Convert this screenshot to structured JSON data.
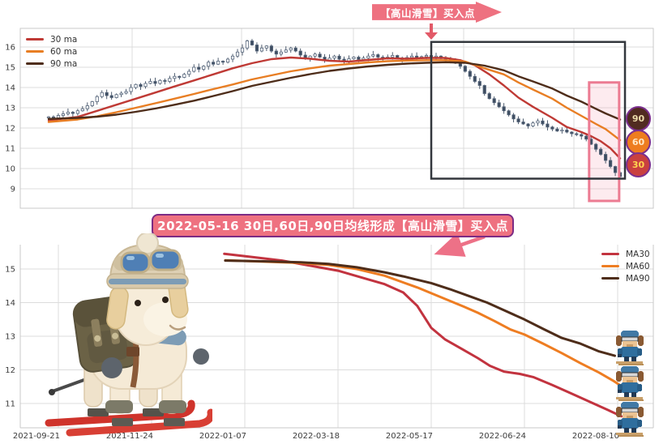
{
  "top_banner": {
    "label": "【高山滑雪】买入点"
  },
  "mid_banner": {
    "label": "2022-05-16 30日,60日,90日均线形成【高山滑雪】买入点"
  },
  "badges": [
    {
      "label": "90",
      "bg": "#512b20",
      "fg": "#ecdcab"
    },
    {
      "label": "60",
      "bg": "#ee7d1f",
      "fg": "#ffe9c7"
    },
    {
      "label": "30",
      "bg": "#c9403f",
      "fg": "#ffd54f"
    }
  ],
  "colors": {
    "banner_pink": "#ee7180",
    "banner_border_purple": "#7c2b84",
    "arrow_pink": "#ed7187",
    "highlight_box": "#33373d",
    "highlight_band_border": "#ec7b92",
    "highlight_band_fill": "rgba(244,166,184,0.22)",
    "candle_down": "#3d4c60",
    "candle_up_fill": "#ffffff",
    "grid": "#dcdcdc",
    "spine": "#c9c9c9",
    "tick_label": "#3c3c3c"
  },
  "chart_data": [
    {
      "type": "candlestick",
      "title": "",
      "xlabel": "",
      "ylabel": "",
      "ylim": [
        8.0,
        16.9
      ],
      "yticks": [
        9,
        10,
        11,
        12,
        13,
        14,
        15,
        16
      ],
      "xticklabels": [],
      "grid": true,
      "legend_position": "top-left",
      "candles_close": [
        12.55,
        12.5,
        12.62,
        12.7,
        12.78,
        12.72,
        12.85,
        12.95,
        13.1,
        13.3,
        13.55,
        13.75,
        13.6,
        13.5,
        13.65,
        13.72,
        13.8,
        14.0,
        14.15,
        14.05,
        14.2,
        14.3,
        14.2,
        14.35,
        14.3,
        14.45,
        14.55,
        14.5,
        14.65,
        14.8,
        15.0,
        14.9,
        15.05,
        15.25,
        15.15,
        15.3,
        15.25,
        15.4,
        15.55,
        15.75,
        15.95,
        16.3,
        16.1,
        15.8,
        15.95,
        16.05,
        15.8,
        15.65,
        15.75,
        15.85,
        15.95,
        15.8,
        15.6,
        15.45,
        15.55,
        15.65,
        15.5,
        15.35,
        15.45,
        15.55,
        15.4,
        15.3,
        15.42,
        15.5,
        15.38,
        15.45,
        15.55,
        15.62,
        15.5,
        15.42,
        15.5,
        15.58,
        15.45,
        15.38,
        15.48,
        15.55,
        15.45,
        15.52,
        15.58,
        15.5,
        15.55,
        15.48,
        15.4,
        15.3,
        15.2,
        15.05,
        14.8,
        14.55,
        14.3,
        14.1,
        13.7,
        13.45,
        13.25,
        13.05,
        12.85,
        12.65,
        12.45,
        12.3,
        12.2,
        12.1,
        12.25,
        12.35,
        12.2,
        12.05,
        11.95,
        11.85,
        11.9,
        11.8,
        11.72,
        11.68,
        11.6,
        11.45,
        11.2,
        10.95,
        10.7,
        10.4,
        10.1,
        9.8,
        9.6
      ],
      "series": [
        {
          "name": "30 ma",
          "color": "#bf3a35",
          "points": [
            [
              0,
              12.38
            ],
            [
              6,
              12.55
            ],
            [
              10,
              12.85
            ],
            [
              14,
              13.15
            ],
            [
              18,
              13.45
            ],
            [
              22,
              13.75
            ],
            [
              26,
              14.05
            ],
            [
              30,
              14.35
            ],
            [
              34,
              14.65
            ],
            [
              38,
              14.95
            ],
            [
              42,
              15.2
            ],
            [
              46,
              15.4
            ],
            [
              50,
              15.48
            ],
            [
              54,
              15.42
            ],
            [
              58,
              15.32
            ],
            [
              62,
              15.28
            ],
            [
              66,
              15.36
            ],
            [
              70,
              15.44
            ],
            [
              74,
              15.42
            ],
            [
              78,
              15.46
            ],
            [
              82,
              15.46
            ],
            [
              85,
              15.35
            ],
            [
              88,
              15.1
            ],
            [
              91,
              14.65
            ],
            [
              94,
              14.1
            ],
            [
              97,
              13.5
            ],
            [
              100,
              13.05
            ],
            [
              104,
              12.5
            ],
            [
              107,
              12.05
            ],
            [
              110,
              11.8
            ],
            [
              112,
              11.6
            ],
            [
              114,
              11.35
            ],
            [
              116,
              11.0
            ],
            [
              118,
              10.5
            ]
          ]
        },
        {
          "name": "60 ma",
          "color": "#e87e24",
          "points": [
            [
              0,
              12.3
            ],
            [
              6,
              12.42
            ],
            [
              10,
              12.58
            ],
            [
              14,
              12.78
            ],
            [
              18,
              13.0
            ],
            [
              22,
              13.22
            ],
            [
              26,
              13.45
            ],
            [
              30,
              13.68
            ],
            [
              34,
              13.92
            ],
            [
              38,
              14.15
            ],
            [
              42,
              14.4
            ],
            [
              46,
              14.6
            ],
            [
              50,
              14.8
            ],
            [
              54,
              14.95
            ],
            [
              58,
              15.08
            ],
            [
              62,
              15.16
            ],
            [
              66,
              15.24
            ],
            [
              70,
              15.3
            ],
            [
              74,
              15.33
            ],
            [
              78,
              15.35
            ],
            [
              82,
              15.35
            ],
            [
              86,
              15.28
            ],
            [
              90,
              14.95
            ],
            [
              94,
              14.65
            ],
            [
              97,
              14.25
            ],
            [
              100,
              13.9
            ],
            [
              104,
              13.45
            ],
            [
              107,
              13.0
            ],
            [
              110,
              12.6
            ],
            [
              113,
              12.2
            ],
            [
              115,
              11.95
            ],
            [
              118,
              11.4
            ]
          ]
        },
        {
          "name": "90 ma",
          "color": "#4e2d1a",
          "points": [
            [
              0,
              12.45
            ],
            [
              6,
              12.5
            ],
            [
              10,
              12.56
            ],
            [
              14,
              12.66
            ],
            [
              18,
              12.8
            ],
            [
              22,
              12.96
            ],
            [
              26,
              13.15
            ],
            [
              30,
              13.35
            ],
            [
              34,
              13.58
            ],
            [
              38,
              13.82
            ],
            [
              42,
              14.08
            ],
            [
              46,
              14.28
            ],
            [
              50,
              14.48
            ],
            [
              54,
              14.66
            ],
            [
              58,
              14.82
            ],
            [
              62,
              14.94
            ],
            [
              66,
              15.04
            ],
            [
              70,
              15.12
            ],
            [
              74,
              15.18
            ],
            [
              78,
              15.22
            ],
            [
              82,
              15.25
            ],
            [
              86,
              15.22
            ],
            [
              90,
              15.08
            ],
            [
              94,
              14.85
            ],
            [
              97,
              14.55
            ],
            [
              100,
              14.3
            ],
            [
              104,
              13.95
            ],
            [
              107,
              13.6
            ],
            [
              110,
              13.3
            ],
            [
              113,
              12.95
            ],
            [
              115,
              12.72
            ],
            [
              118,
              12.42
            ]
          ]
        }
      ],
      "annotations": {
        "highlight_box": {
          "x0_index": 79,
          "x1_index": 119,
          "y0": 9.5,
          "y1": 16.25
        },
        "highlight_band": {
          "x0_index": 111.6,
          "x1_index": 117.8,
          "y0": 8.4,
          "y1": 14.25
        },
        "badge_values": [
          12.4,
          11.4,
          10.5
        ]
      }
    },
    {
      "type": "line",
      "title": "",
      "xlabel": "",
      "ylabel": "",
      "ylim": [
        10.3,
        15.72
      ],
      "yticks": [
        11,
        12,
        13,
        14,
        15
      ],
      "xticklabels": [
        "2021-09-21",
        "2021-11-24",
        "2022-01-07",
        "2022-03-18",
        "2022-05-17",
        "2022-06-24",
        "2022-08-10"
      ],
      "grid": true,
      "legend_position": "top-right",
      "series": [
        {
          "name": "MA30",
          "color": "#c2333f",
          "points": [
            [
              1.78,
              15.45
            ],
            [
              2.1,
              15.35
            ],
            [
              2.4,
              15.25
            ],
            [
              2.7,
              15.1
            ],
            [
              3.0,
              14.95
            ],
            [
              3.25,
              14.75
            ],
            [
              3.5,
              14.55
            ],
            [
              3.7,
              14.3
            ],
            [
              3.85,
              13.9
            ],
            [
              4.0,
              13.25
            ],
            [
              4.15,
              12.9
            ],
            [
              4.33,
              12.62
            ],
            [
              4.5,
              12.35
            ],
            [
              4.63,
              12.12
            ],
            [
              4.78,
              11.95
            ],
            [
              4.95,
              11.88
            ],
            [
              5.1,
              11.78
            ],
            [
              5.3,
              11.55
            ],
            [
              5.5,
              11.3
            ],
            [
              5.7,
              11.05
            ],
            [
              5.9,
              10.8
            ],
            [
              6.04,
              10.62
            ]
          ]
        },
        {
          "name": "MA60",
          "color": "#ee7d22",
          "points": [
            [
              1.79,
              15.26
            ],
            [
              2.2,
              15.22
            ],
            [
              2.6,
              15.18
            ],
            [
              2.9,
              15.12
            ],
            [
              3.2,
              15.0
            ],
            [
              3.5,
              14.8
            ],
            [
              3.7,
              14.6
            ],
            [
              3.85,
              14.45
            ],
            [
              4.0,
              14.28
            ],
            [
              4.2,
              14.05
            ],
            [
              4.35,
              13.88
            ],
            [
              4.5,
              13.7
            ],
            [
              4.68,
              13.45
            ],
            [
              4.85,
              13.2
            ],
            [
              5.0,
              13.05
            ],
            [
              5.2,
              12.78
            ],
            [
              5.4,
              12.5
            ],
            [
              5.6,
              12.2
            ],
            [
              5.8,
              11.92
            ],
            [
              5.95,
              11.68
            ],
            [
              6.05,
              11.5
            ]
          ]
        },
        {
          "name": "MA90",
          "color": "#4e2d1a",
          "points": [
            [
              1.79,
              15.25
            ],
            [
              2.2,
              15.23
            ],
            [
              2.6,
              15.2
            ],
            [
              2.9,
              15.15
            ],
            [
              3.2,
              15.05
            ],
            [
              3.5,
              14.9
            ],
            [
              3.7,
              14.78
            ],
            [
              3.85,
              14.68
            ],
            [
              4.0,
              14.58
            ],
            [
              4.2,
              14.4
            ],
            [
              4.4,
              14.2
            ],
            [
              4.6,
              14.0
            ],
            [
              4.8,
              13.75
            ],
            [
              5.0,
              13.5
            ],
            [
              5.2,
              13.22
            ],
            [
              5.4,
              12.95
            ],
            [
              5.6,
              12.78
            ],
            [
              5.8,
              12.55
            ],
            [
              5.97,
              12.42
            ]
          ]
        }
      ]
    }
  ]
}
